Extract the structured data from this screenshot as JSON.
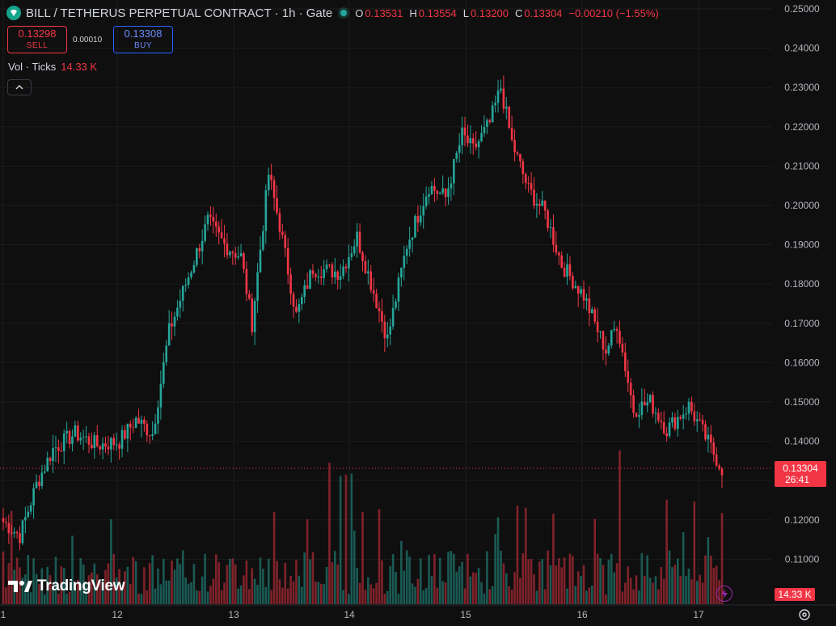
{
  "header": {
    "symbol": "BILL / TETHERUS PERPETUAL CONTRACT · 1h · Gate",
    "o_label": "O",
    "o_value": "0.13531",
    "h_label": "H",
    "h_value": "0.13554",
    "l_label": "L",
    "l_value": "0.13200",
    "c_label": "C",
    "c_value": "0.13304",
    "change": "−0.00210 (−1.55%)"
  },
  "trade": {
    "sell_price": "0.13298",
    "sell_label": "SELL",
    "spread": "0.00010",
    "buy_price": "0.13308",
    "buy_label": "BUY"
  },
  "volume": {
    "label": "Vol · Ticks",
    "value": "14.33 K"
  },
  "branding": {
    "logo_text": "TradingView"
  },
  "price_tag": {
    "price": "0.13304",
    "countdown": "26:41"
  },
  "volume_tag": "14.33 K",
  "colors": {
    "up": "#26a69a",
    "down": "#f23645",
    "background": "#0f0f0f",
    "grid": "#1c1c1c"
  },
  "icons": [
    "diamond-logo-icon",
    "chevron-up-icon",
    "tradingview-logo-icon",
    "lightning-icon",
    "gear-icon"
  ],
  "chart_data": {
    "type": "candlestick",
    "interval": "1h",
    "y_axis": {
      "ticks": [
        "0.25000",
        "0.24000",
        "0.23000",
        "0.22000",
        "0.21000",
        "0.20000",
        "0.19000",
        "0.18000",
        "0.17000",
        "0.16000",
        "0.15000",
        "0.14000",
        "0.13000",
        "0.12000",
        "0.11000"
      ],
      "range": [
        0.1,
        0.252
      ]
    },
    "x_axis": {
      "ticks": [
        "1",
        "12",
        "13",
        "14",
        "15",
        "16",
        "17"
      ]
    },
    "grid": true,
    "series": [
      {
        "name": "Price",
        "control_points": [
          [
            0,
            0.1195
          ],
          [
            6,
            0.116
          ],
          [
            12,
            0.129
          ],
          [
            18,
            0.138
          ],
          [
            26,
            0.142
          ],
          [
            34,
            0.139
          ],
          [
            42,
            0.14
          ],
          [
            48,
            0.1455
          ],
          [
            54,
            0.142
          ],
          [
            60,
            0.168
          ],
          [
            66,
            0.18
          ],
          [
            74,
            0.196
          ],
          [
            80,
            0.19
          ],
          [
            86,
            0.187
          ],
          [
            90,
            0.17
          ],
          [
            96,
            0.208
          ],
          [
            100,
            0.195
          ],
          [
            106,
            0.172
          ],
          [
            112,
            0.184
          ],
          [
            122,
            0.183
          ],
          [
            128,
            0.192
          ],
          [
            134,
            0.178
          ],
          [
            139,
            0.166
          ],
          [
            146,
            0.19
          ],
          [
            154,
            0.205
          ],
          [
            160,
            0.202
          ],
          [
            166,
            0.218
          ],
          [
            170,
            0.214
          ],
          [
            176,
            0.221
          ],
          [
            180,
            0.23
          ],
          [
            184,
            0.216
          ],
          [
            190,
            0.204
          ],
          [
            196,
            0.198
          ],
          [
            202,
            0.185
          ],
          [
            210,
            0.177
          ],
          [
            218,
            0.163
          ],
          [
            222,
            0.17
          ],
          [
            228,
            0.148
          ],
          [
            234,
            0.15
          ],
          [
            240,
            0.143
          ],
          [
            248,
            0.149
          ],
          [
            254,
            0.141
          ],
          [
            260,
            0.133
          ]
        ]
      },
      {
        "name": "Volume",
        "max_value": "14.33 K"
      }
    ]
  }
}
